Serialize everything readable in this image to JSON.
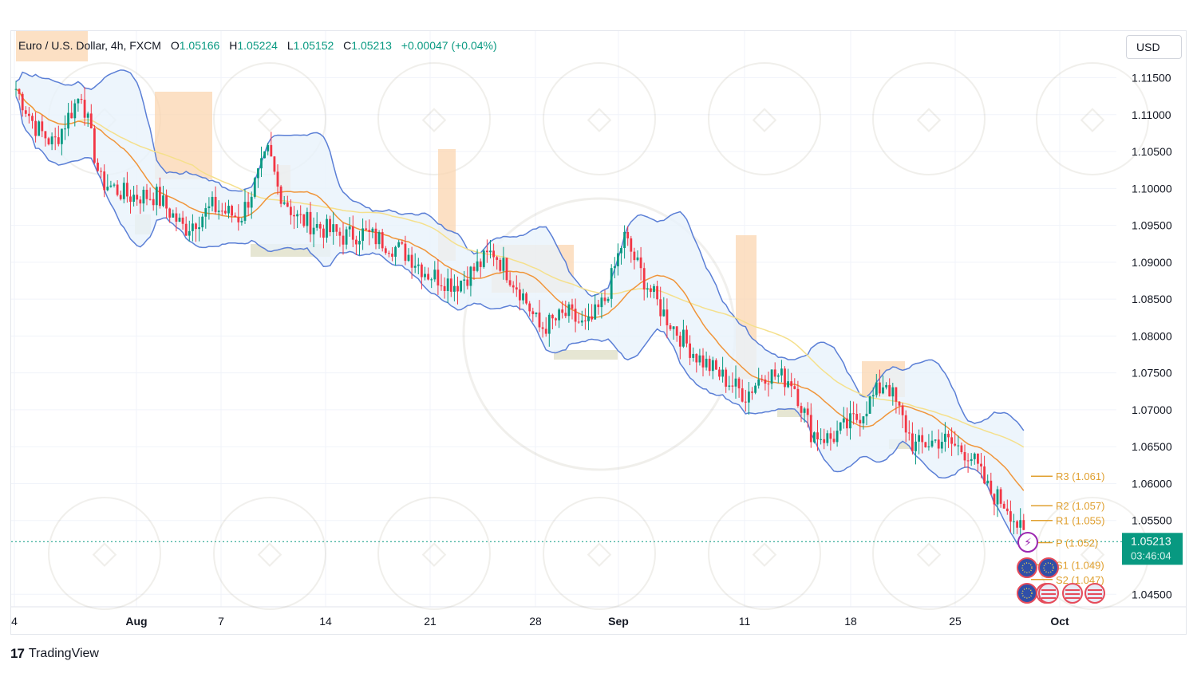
{
  "header": {
    "symbol": "Euro / U.S. Dollar, 4h, FXCM",
    "open_label": "O",
    "open": "1.05166",
    "high_label": "H",
    "high": "1.05224",
    "low_label": "L",
    "low": "1.05152",
    "close_label": "C",
    "close": "1.05213",
    "change": "+0.00047 (+0.04%)"
  },
  "currency_button": "USD",
  "brand": {
    "logo": "17",
    "name": "TradingView"
  },
  "price_label": {
    "price": "1.05213",
    "countdown": "03:46:04"
  },
  "colors": {
    "up": "#089981",
    "down": "#f23645",
    "band": "#5b7fd6",
    "band_fill": "#e8f2fb",
    "ma_orange": "#f0953a",
    "ma_yellow": "#f5e08c",
    "zone": "#fbd5b0",
    "pivot": "#e0a030"
  },
  "chart_data": {
    "type": "candlestick",
    "title": "Euro / U.S. Dollar, 4h, FXCM",
    "y_ticks": [
      "1.11500",
      "1.11000",
      "1.10500",
      "1.10000",
      "1.09500",
      "1.09000",
      "1.08500",
      "1.08000",
      "1.07500",
      "1.07000",
      "1.06500",
      "1.06000",
      "1.05500",
      "1.04500"
    ],
    "ylim": [
      1.0433,
      1.117
    ],
    "x_ticks": [
      {
        "label": "4",
        "bold": false
      },
      {
        "label": "Aug",
        "bold": true
      },
      {
        "label": "7",
        "bold": false
      },
      {
        "label": "14",
        "bold": false
      },
      {
        "label": "21",
        "bold": false
      },
      {
        "label": "28",
        "bold": false
      },
      {
        "label": "Sep",
        "bold": true
      },
      {
        "label": "11",
        "bold": false
      },
      {
        "label": "18",
        "bold": false
      },
      {
        "label": "25",
        "bold": false
      },
      {
        "label": "Oct",
        "bold": true
      }
    ],
    "last_close": 1.05213,
    "close_path": [
      [
        "2023-07-04",
        1.1135
      ],
      [
        "2023-07-06",
        1.1085
      ],
      [
        "2023-07-08",
        1.106
      ],
      [
        "2023-07-11",
        1.113
      ],
      [
        "2023-07-13",
        1.101
      ],
      [
        "2023-07-16",
        1.099
      ],
      [
        "2023-07-19",
        1.099
      ],
      [
        "2023-07-22",
        1.0945
      ],
      [
        "2023-07-25",
        1.0975
      ],
      [
        "2023-07-28",
        1.096
      ],
      [
        "2023-07-31",
        1.105
      ],
      [
        "2023-08-01",
        1.1
      ],
      [
        "2023-08-03",
        1.096
      ],
      [
        "2023-08-06",
        1.0945
      ],
      [
        "2023-08-08",
        1.0935
      ],
      [
        "2023-08-10",
        1.094
      ],
      [
        "2023-08-12",
        1.093
      ],
      [
        "2023-08-15",
        1.091
      ],
      [
        "2023-08-17",
        1.0885
      ],
      [
        "2023-08-20",
        1.087
      ],
      [
        "2023-08-22",
        1.089
      ],
      [
        "2023-08-24",
        1.0915
      ],
      [
        "2023-08-27",
        1.086
      ],
      [
        "2023-08-29",
        1.081
      ],
      [
        "2023-09-01",
        1.083
      ],
      [
        "2023-09-03",
        1.081
      ],
      [
        "2023-09-05",
        1.085
      ],
      [
        "2023-09-07",
        1.0935
      ],
      [
        "2023-09-09",
        1.088
      ],
      [
        "2023-09-11",
        1.0835
      ],
      [
        "2023-09-13",
        1.08
      ],
      [
        "2023-09-15",
        1.077
      ],
      [
        "2023-09-18",
        1.074
      ],
      [
        "2023-09-20",
        1.072
      ],
      [
        "2023-09-22",
        1.075
      ],
      [
        "2023-09-25",
        1.074
      ],
      [
        "2023-09-27",
        1.067
      ],
      [
        "2023-09-29",
        1.066
      ],
      [
        "2023-10-02",
        1.069
      ],
      [
        "2023-10-05",
        1.074
      ],
      [
        "2023-10-08",
        1.065
      ],
      [
        "2023-10-11",
        1.066
      ],
      [
        "2023-10-14",
        1.064
      ],
      [
        "2023-10-16",
        1.059
      ],
      [
        "2023-10-18",
        1.057
      ],
      [
        "2023-10-20",
        1.0521
      ]
    ],
    "pivots": [
      {
        "label": "R3 (1.061)",
        "value": 1.061
      },
      {
        "label": "R2 (1.057)",
        "value": 1.057
      },
      {
        "label": "R1 (1.055)",
        "value": 1.055
      },
      {
        "label": "P (1.052)",
        "value": 1.052
      },
      {
        "label": "S1 (1.049)",
        "value": 1.049
      },
      {
        "label": "S2 (1.047)",
        "value": 1.047
      }
    ],
    "event_icons": [
      "flash-icon",
      "eu-flag-icon",
      "eu-flag-icon",
      "eu-flag-icon",
      "us-flag-icon",
      "us-flag-icon",
      "us-flag-icon",
      "us-flag-icon"
    ]
  }
}
